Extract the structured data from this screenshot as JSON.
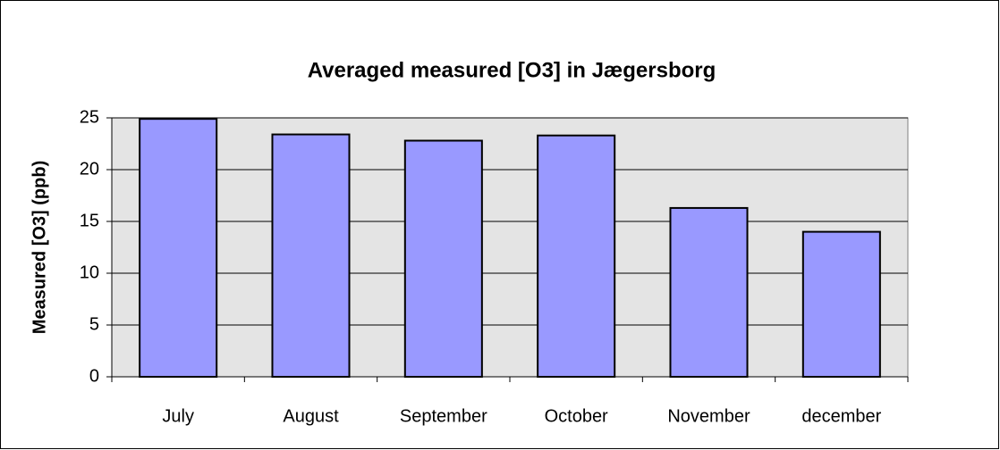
{
  "chart_data": {
    "type": "bar",
    "title": "Averaged measured [O3] in Jægersborg",
    "y_label": "Measured [O3] (ppb)",
    "categories": [
      "July",
      "August",
      "September",
      "October",
      "November",
      "december"
    ],
    "values": [
      24.9,
      23.4,
      22.8,
      23.3,
      16.3,
      14.0
    ],
    "color": "#9999ff",
    "ylim": [
      0,
      25
    ],
    "yticks": [
      0,
      5,
      10,
      15,
      20,
      25
    ],
    "grid": true
  }
}
